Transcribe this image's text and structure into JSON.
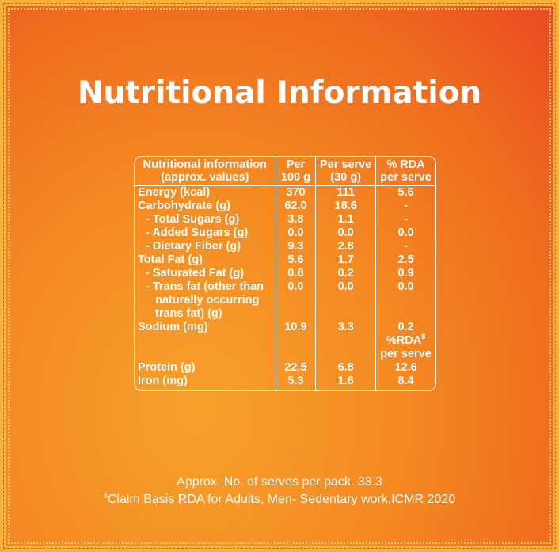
{
  "title": "Nutritional Information",
  "table": {
    "headers": [
      {
        "line1": "Nutritional information",
        "line2": "(approx. values)"
      },
      {
        "line1": "Per",
        "line2": "100 g"
      },
      {
        "line1": "Per serve",
        "line2": "(30 g)"
      },
      {
        "line1": "% RDA",
        "line2": "per serve"
      }
    ],
    "rows": [
      {
        "label": "Energy (kcal)",
        "per100": "370",
        "serve": "111",
        "rda": "5.6"
      },
      {
        "label": "Carbohydrate (g)",
        "per100": "62.0",
        "serve": "18.6",
        "rda": "-"
      },
      {
        "label": "- Total Sugars (g)",
        "per100": "3.8",
        "serve": "1.1",
        "rda": "-"
      },
      {
        "label": "- Added Sugars (g)",
        "per100": "0.0",
        "serve": "0.0",
        "rda": "0.0"
      },
      {
        "label": "- Dietary Fiber (g)",
        "per100": "9.3",
        "serve": "2.8",
        "rda": "-"
      },
      {
        "label": "Total Fat (g)",
        "per100": "5.6",
        "serve": "1.7",
        "rda": "2.5"
      },
      {
        "label": "- Saturated Fat (g)",
        "per100": "0.8",
        "serve": "0.2",
        "rda": "0.9"
      },
      {
        "label": "- Trans fat (other than",
        "per100": "0.0",
        "serve": "0.0",
        "rda": "0.0"
      },
      {
        "label": "naturally occurring",
        "per100": "",
        "serve": "",
        "rda": ""
      },
      {
        "label": "trans fat) (g)",
        "per100": "",
        "serve": "",
        "rda": ""
      },
      {
        "label": "Sodium (mg)",
        "per100": "10.9",
        "serve": "3.3",
        "rda": "0.2"
      },
      {
        "label": "",
        "per100": "",
        "serve": "",
        "rda": "%RDA"
      },
      {
        "label": "",
        "per100": "",
        "serve": "",
        "rda": "per serve"
      },
      {
        "label": "Protein (g)",
        "per100": "22.5",
        "serve": "6.8",
        "rda": "12.6"
      },
      {
        "label": "Iron (mg)",
        "per100": "5.3",
        "serve": "1.6",
        "rda": "8.4"
      }
    ],
    "rda_sup": "$"
  },
  "footer": {
    "line1": "Approx. No. of serves per pack. 33.3",
    "line2_sup": "$",
    "line2": "Claim Basis RDA for Adults, Men- Sedentary work,ICMR 2020"
  },
  "colors": {
    "background": "#f07a1c",
    "text": "#ffffff",
    "border": "#f5b23a"
  }
}
